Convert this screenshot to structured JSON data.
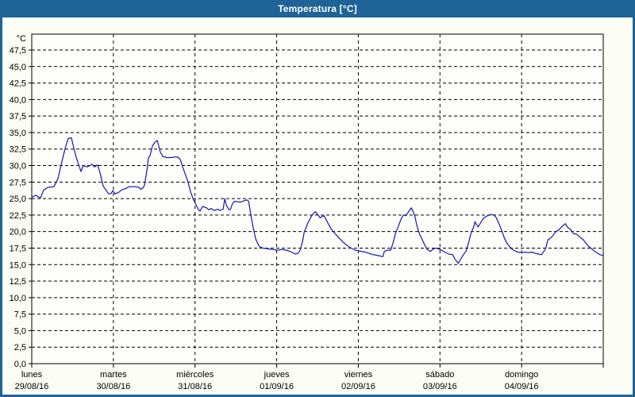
{
  "window": {
    "title": "Temperatura [°C]"
  },
  "colors": {
    "titlebar_bg": "#1e6496",
    "titlebar_text": "#ffffff",
    "panel_bg": "#fcfdf5",
    "plot_bg": "#fefefb",
    "grid": "#000000",
    "axis_text": "#000000",
    "line": "#1d1db4"
  },
  "chart_data": {
    "type": "line",
    "title": "Temperatura [°C]",
    "ylabel": "°C",
    "xlabel": "",
    "legend": "none",
    "grid": "dashed",
    "y_axis": {
      "unit": "°C",
      "min": 0,
      "max": 47.5,
      "step": 2.5,
      "tick_labels": [
        "0,0",
        "2,5",
        "5,0",
        "7,5",
        "10,0",
        "12,5",
        "15,0",
        "17,5",
        "20,0",
        "22,5",
        "25,0",
        "27,5",
        "30,0",
        "32,5",
        "35,0",
        "37,5",
        "40,0",
        "42,5",
        "45,0",
        "47,5"
      ]
    },
    "x_axis": {
      "days": [
        {
          "name": "lunes",
          "date": "29/08/16"
        },
        {
          "name": "martes",
          "date": "30/08/16"
        },
        {
          "name": "miércoles",
          "date": "31/08/16"
        },
        {
          "name": "jueves",
          "date": "01/09/16"
        },
        {
          "name": "viernes",
          "date": "02/09/16"
        },
        {
          "name": "sábado",
          "date": "03/09/16"
        },
        {
          "name": "domingo",
          "date": "04/09/16"
        }
      ],
      "span_days": 7
    },
    "series": [
      {
        "name": "Temperatura",
        "color": "#1d1db4",
        "x_unit": "days (0 = lunes 29/08/16 00:00)",
        "points": [
          [
            0,
            25.2
          ],
          [
            0.049,
            25.5
          ],
          [
            0.107,
            25.1
          ],
          [
            0.146,
            26.3
          ],
          [
            0.195,
            26.7
          ],
          [
            0.272,
            26.8
          ],
          [
            0.321,
            28
          ],
          [
            0.35,
            29.6
          ],
          [
            0.389,
            31.6
          ],
          [
            0.418,
            33
          ],
          [
            0.447,
            34.1
          ],
          [
            0.486,
            34.2
          ],
          [
            0.516,
            32.6
          ],
          [
            0.545,
            31.2
          ],
          [
            0.584,
            29.8
          ],
          [
            0.603,
            29.1
          ],
          [
            0.632,
            30
          ],
          [
            0.681,
            29.8
          ],
          [
            0.739,
            30.2
          ],
          [
            0.768,
            29.8
          ],
          [
            0.807,
            30.1
          ],
          [
            0.837,
            28.9
          ],
          [
            0.875,
            26.9
          ],
          [
            0.914,
            26.2
          ],
          [
            0.944,
            25.7
          ],
          [
            0.973,
            25.8
          ],
          [
            0.992,
            26.2
          ],
          [
            1.021,
            25.7
          ],
          [
            1.07,
            26
          ],
          [
            1.099,
            26.3
          ],
          [
            1.148,
            26.5
          ],
          [
            1.196,
            26.8
          ],
          [
            1.264,
            26.8
          ],
          [
            1.313,
            26.7
          ],
          [
            1.333,
            26.4
          ],
          [
            1.362,
            26.6
          ],
          [
            1.381,
            27
          ],
          [
            1.411,
            29.3
          ],
          [
            1.43,
            31.2
          ],
          [
            1.449,
            31.5
          ],
          [
            1.479,
            33
          ],
          [
            1.508,
            33.5
          ],
          [
            1.537,
            33.8
          ],
          [
            1.576,
            32
          ],
          [
            1.605,
            31.4
          ],
          [
            1.654,
            31.2
          ],
          [
            1.702,
            31.2
          ],
          [
            1.751,
            31.3
          ],
          [
            1.79,
            31.3
          ],
          [
            1.819,
            30.9
          ],
          [
            1.848,
            29.8
          ],
          [
            1.877,
            28.8
          ],
          [
            1.916,
            27.4
          ],
          [
            1.946,
            26
          ],
          [
            1.975,
            25
          ],
          [
            2.014,
            24
          ],
          [
            2.043,
            23.3
          ],
          [
            2.062,
            23.1
          ],
          [
            2.091,
            23.8
          ],
          [
            2.14,
            23.6
          ],
          [
            2.169,
            23.3
          ],
          [
            2.198,
            23.5
          ],
          [
            2.237,
            23.2
          ],
          [
            2.276,
            23.4
          ],
          [
            2.305,
            23.2
          ],
          [
            2.344,
            23.4
          ],
          [
            2.364,
            25
          ],
          [
            2.383,
            24
          ],
          [
            2.412,
            23.4
          ],
          [
            2.432,
            23.3
          ],
          [
            2.461,
            24.3
          ],
          [
            2.49,
            24.6
          ],
          [
            2.529,
            24.5
          ],
          [
            2.568,
            24.5
          ],
          [
            2.607,
            24.7
          ],
          [
            2.636,
            24.8
          ],
          [
            2.656,
            24.6
          ],
          [
            2.695,
            21.7
          ],
          [
            2.724,
            19.9
          ],
          [
            2.743,
            18.9
          ],
          [
            2.772,
            18.1
          ],
          [
            2.792,
            17.7
          ],
          [
            2.831,
            17.5
          ],
          [
            2.889,
            17.4
          ],
          [
            2.938,
            17.3
          ],
          [
            3.016,
            17.2
          ],
          [
            3.064,
            17.3
          ],
          [
            3.113,
            17.2
          ],
          [
            3.161,
            17
          ],
          [
            3.2,
            16.8
          ],
          [
            3.23,
            16.6
          ],
          [
            3.259,
            16.7
          ],
          [
            3.288,
            17.2
          ],
          [
            3.317,
            18.5
          ],
          [
            3.337,
            19.9
          ],
          [
            3.366,
            20.8
          ],
          [
            3.385,
            21.4
          ],
          [
            3.424,
            22.3
          ],
          [
            3.453,
            22.8
          ],
          [
            3.473,
            23
          ],
          [
            3.502,
            22.6
          ],
          [
            3.531,
            22.1
          ],
          [
            3.56,
            22.3
          ],
          [
            3.58,
            22.4
          ],
          [
            3.619,
            21.5
          ],
          [
            3.667,
            20.4
          ],
          [
            3.716,
            19.7
          ],
          [
            3.765,
            19
          ],
          [
            3.813,
            18.4
          ],
          [
            3.862,
            17.9
          ],
          [
            3.911,
            17.5
          ],
          [
            3.959,
            17.2
          ],
          [
            3.998,
            17.1
          ],
          [
            4.037,
            17
          ],
          [
            4.086,
            16.9
          ],
          [
            4.134,
            16.7
          ],
          [
            4.183,
            16.5
          ],
          [
            4.232,
            16.4
          ],
          [
            4.27,
            16.3
          ],
          [
            4.3,
            16.2
          ],
          [
            4.319,
            17
          ],
          [
            4.358,
            17.2
          ],
          [
            4.397,
            17.2
          ],
          [
            4.426,
            18.3
          ],
          [
            4.455,
            19.7
          ],
          [
            4.494,
            20.9
          ],
          [
            4.523,
            21.9
          ],
          [
            4.553,
            22.5
          ],
          [
            4.582,
            22.4
          ],
          [
            4.621,
            23.1
          ],
          [
            4.65,
            23.6
          ],
          [
            4.689,
            22.5
          ],
          [
            4.718,
            20.9
          ],
          [
            4.747,
            19.7
          ],
          [
            4.786,
            18.7
          ],
          [
            4.815,
            17.9
          ],
          [
            4.844,
            17.3
          ],
          [
            4.883,
            17
          ],
          [
            4.912,
            17.3
          ],
          [
            4.941,
            17.5
          ],
          [
            4.98,
            17.4
          ],
          [
            5.019,
            17.2
          ],
          [
            5.058,
            16.9
          ],
          [
            5.107,
            16.6
          ],
          [
            5.156,
            16.5
          ],
          [
            5.185,
            15.8
          ],
          [
            5.224,
            15.2
          ],
          [
            5.253,
            15.8
          ],
          [
            5.282,
            16.4
          ],
          [
            5.321,
            17.1
          ],
          [
            5.35,
            18.3
          ],
          [
            5.379,
            19.7
          ],
          [
            5.418,
            20.9
          ],
          [
            5.428,
            21.5
          ],
          [
            5.467,
            20.7
          ],
          [
            5.496,
            21.3
          ],
          [
            5.525,
            21.9
          ],
          [
            5.564,
            22.3
          ],
          [
            5.622,
            22.6
          ],
          [
            5.661,
            22.5
          ],
          [
            5.69,
            22.1
          ],
          [
            5.719,
            21.3
          ],
          [
            5.758,
            20.1
          ],
          [
            5.787,
            19.1
          ],
          [
            5.817,
            18.3
          ],
          [
            5.856,
            17.7
          ],
          [
            5.885,
            17.3
          ],
          [
            5.914,
            17.1
          ],
          [
            5.953,
            16.9
          ],
          [
            6.002,
            16.8
          ],
          [
            6.051,
            16.9
          ],
          [
            6.089,
            16.8
          ],
          [
            6.128,
            16.9
          ],
          [
            6.167,
            16.7
          ],
          [
            6.206,
            16.6
          ],
          [
            6.245,
            16.5
          ],
          [
            6.293,
            17.4
          ],
          [
            6.323,
            18.8
          ],
          [
            6.342,
            18.9
          ],
          [
            6.371,
            19.2
          ],
          [
            6.42,
            20
          ],
          [
            6.459,
            20.3
          ],
          [
            6.488,
            20.7
          ],
          [
            6.517,
            21
          ],
          [
            6.537,
            21.2
          ],
          [
            6.566,
            20.6
          ],
          [
            6.595,
            20.4
          ],
          [
            6.634,
            19.7
          ],
          [
            6.673,
            19.6
          ],
          [
            6.712,
            19.2
          ],
          [
            6.76,
            18.7
          ],
          [
            6.809,
            17.9
          ],
          [
            6.848,
            17.5
          ],
          [
            6.897,
            17
          ],
          [
            6.946,
            16.6
          ],
          [
            6.985,
            16.4
          ],
          [
            7,
            16.4
          ]
        ]
      }
    ]
  }
}
